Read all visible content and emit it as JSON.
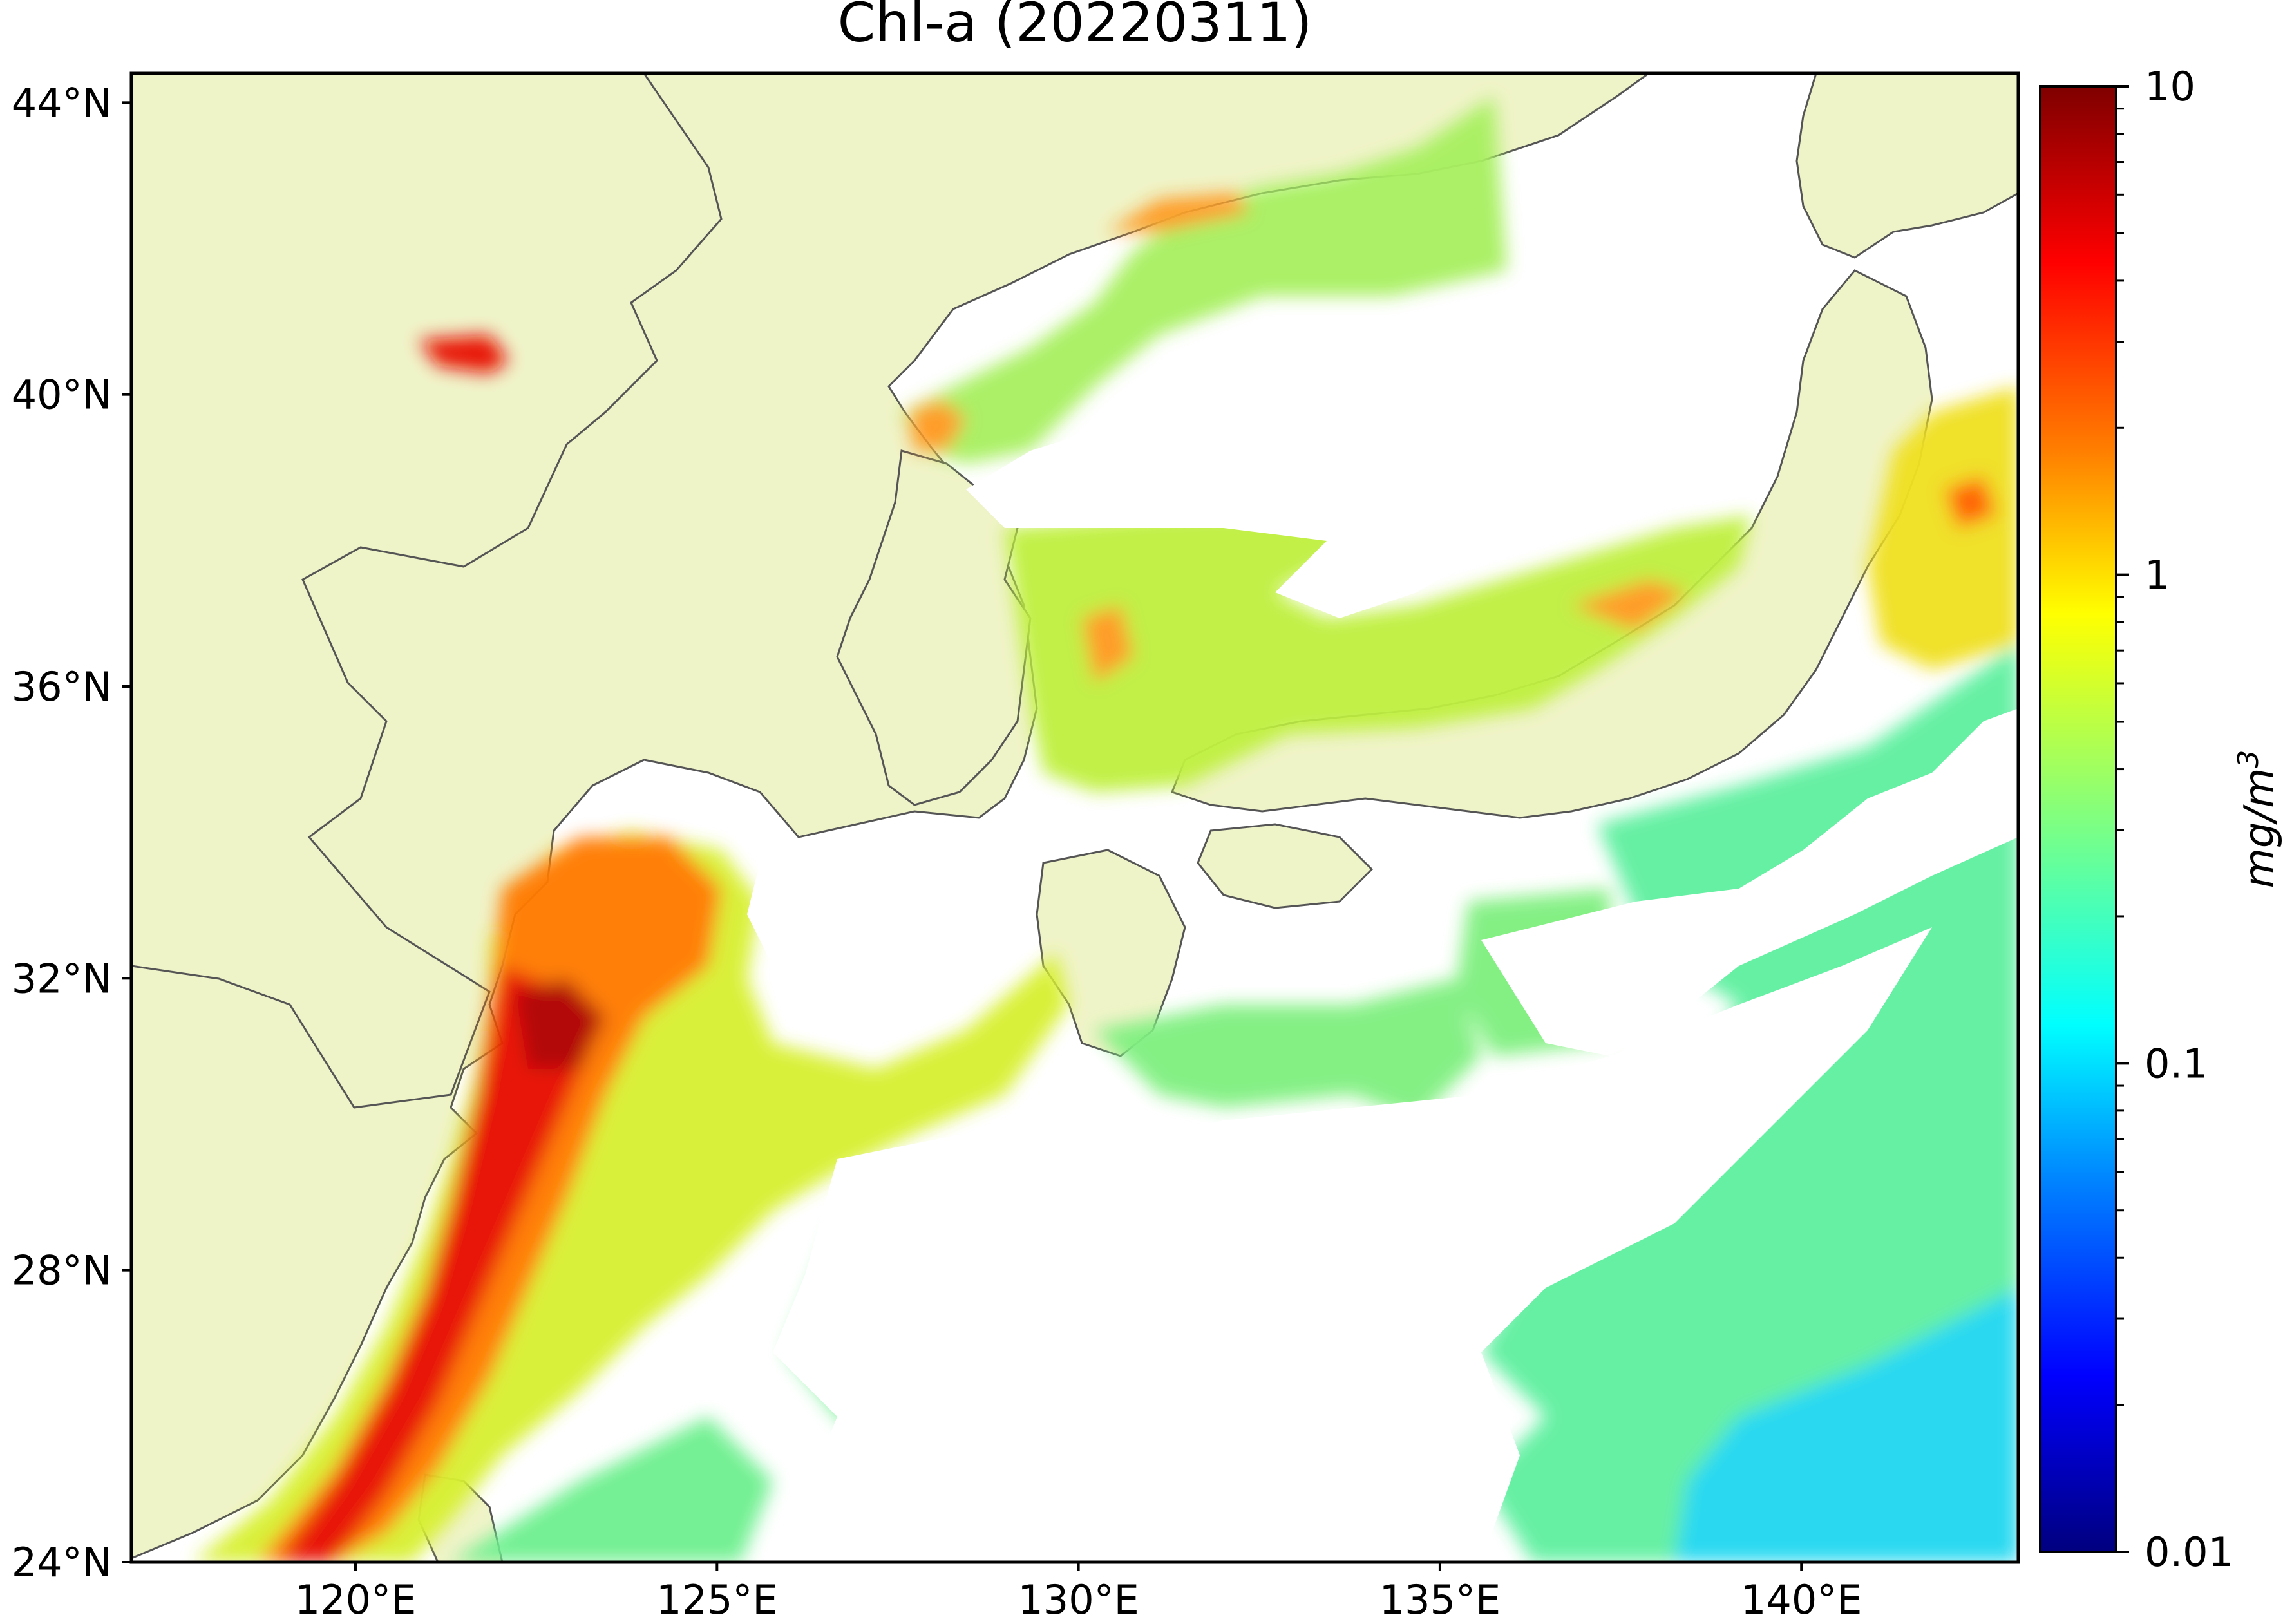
{
  "title": "Chl-a (20220311)",
  "map": {
    "lat_ticks": [
      {
        "value": 44,
        "label": "44°N"
      },
      {
        "value": 40,
        "label": "40°N"
      },
      {
        "value": 36,
        "label": "36°N"
      },
      {
        "value": 32,
        "label": "32°N"
      },
      {
        "value": 28,
        "label": "28°N"
      },
      {
        "value": 24,
        "label": "24°N"
      }
    ],
    "lon_ticks": [
      {
        "value": 120,
        "label": "120°E"
      },
      {
        "value": 125,
        "label": "125°E"
      },
      {
        "value": 130,
        "label": "130°E"
      },
      {
        "value": 135,
        "label": "135°E"
      },
      {
        "value": 140,
        "label": "140°E"
      }
    ],
    "land_color": "#eff3c8",
    "nodata_color": "#ffffff",
    "coastline_color": "#555555"
  },
  "colorbar": {
    "label": "mg/m",
    "label_exponent": "3",
    "scale": "log",
    "range": [
      0.01,
      10
    ],
    "ticks": [
      {
        "value": 10,
        "label": "10"
      },
      {
        "value": 1,
        "label": "1"
      },
      {
        "value": 0.1,
        "label": "0.1"
      },
      {
        "value": 0.01,
        "label": "0.01"
      }
    ],
    "colormap": [
      "#7f0000",
      "#ff0000",
      "#ff8000",
      "#ffff00",
      "#80ff80",
      "#00ffff",
      "#0080ff",
      "#0000ff",
      "#00007f"
    ]
  }
}
